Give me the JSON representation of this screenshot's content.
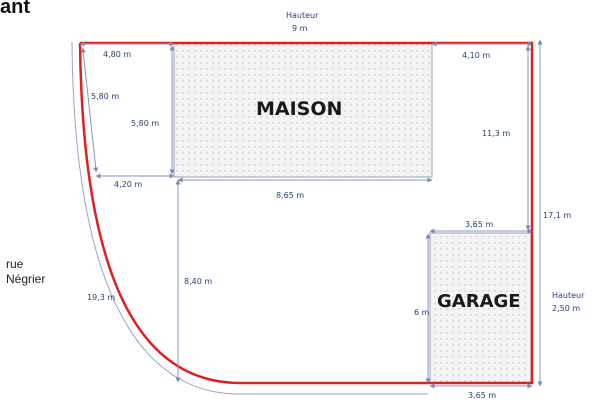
{
  "title_fragment": "ant",
  "street_line1": "rue",
  "street_line2": "Négrier",
  "rooms": {
    "house": "MAISON",
    "garage": "GARAGE"
  },
  "dimensions": {
    "hauteur_top_label": "Hauteur",
    "hauteur_top_value": "9 m",
    "top_left_width": "4,80 m",
    "top_right_width": "4,10 m",
    "left_diag": "5,80 m",
    "left_vert": "5,80 m",
    "left_bottom": "4,20 m",
    "house_bottom": "8,65 m",
    "right_upper": "11,3 m",
    "right_full": "17,1 m",
    "garage_top": "3,65 m",
    "mid_vertical": "8,40 m",
    "curve": "19,3 m",
    "garage_height": "6 m",
    "garage_hauteur_label": "Hauteur",
    "garage_hauteur_value": "2,50 m",
    "garage_bottom": "3,65 m"
  },
  "colors": {
    "outline": "#e02020",
    "dim_lines": "#9aa4c8",
    "text_dim": "#2a3f7a"
  }
}
